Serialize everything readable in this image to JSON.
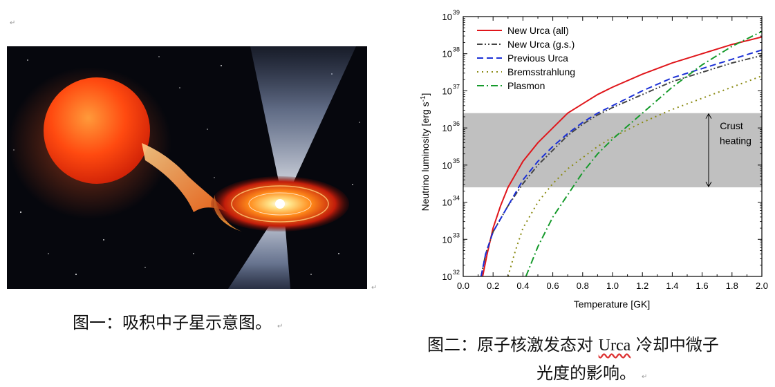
{
  "marks": {
    "paragraph": "↵"
  },
  "figure1": {
    "caption": "图一：吸积中子星示意图。",
    "colors": {
      "star": "#ff4a10",
      "jet": "#c9d8ff",
      "disk": "#ff7a20",
      "space": "#06070d"
    }
  },
  "figure2": {
    "caption_part1": "图二：原子核激发态对 ",
    "caption_urca": "Urca",
    "caption_part2": " 冷却中微子",
    "caption_line2": "光度的影响。",
    "chart_data": {
      "type": "line",
      "xlabel": "Temperature [GK]",
      "ylabel": "Neutrino luminosity [erg s",
      "ylabel_sup": "-1",
      "ylabel_end": "]",
      "xlim": [
        0.0,
        2.0
      ],
      "ylim_log10": [
        32,
        39
      ],
      "log_y": true,
      "grid": false,
      "legend_position": "top-left",
      "xticks": [
        "0.0",
        "0.2",
        "0.4",
        "0.6",
        "0.8",
        "1.0",
        "1.2",
        "1.4",
        "1.6",
        "1.8",
        "2.0"
      ],
      "yticks": [
        {
          "base": "10",
          "exp": "32"
        },
        {
          "base": "10",
          "exp": "33"
        },
        {
          "base": "10",
          "exp": "34"
        },
        {
          "base": "10",
          "exp": "35"
        },
        {
          "base": "10",
          "exp": "36"
        },
        {
          "base": "10",
          "exp": "37"
        },
        {
          "base": "10",
          "exp": "38"
        },
        {
          "base": "10",
          "exp": "39"
        }
      ],
      "band": {
        "y_from_log10": 34.4,
        "y_to_log10": 36.4,
        "color": "#c0c0c0",
        "annotation_line1": "Crust",
        "annotation_line2": "heating"
      },
      "series": [
        {
          "name": "New Urca (all)",
          "color": "#e0161b",
          "dash": "solid",
          "points": [
            [
              0.13,
              32.0
            ],
            [
              0.16,
              32.6
            ],
            [
              0.2,
              33.3
            ],
            [
              0.25,
              33.9
            ],
            [
              0.3,
              34.4
            ],
            [
              0.4,
              35.1
            ],
            [
              0.5,
              35.6
            ],
            [
              0.6,
              36.0
            ],
            [
              0.7,
              36.4
            ],
            [
              0.8,
              36.65
            ],
            [
              0.9,
              36.9
            ],
            [
              1.0,
              37.1
            ],
            [
              1.2,
              37.45
            ],
            [
              1.4,
              37.75
            ],
            [
              1.6,
              38.0
            ],
            [
              1.8,
              38.25
            ],
            [
              2.0,
              38.45
            ]
          ]
        },
        {
          "name": "New Urca (g.s.)",
          "color": "#444444",
          "dash": "dashdotdot",
          "points": [
            [
              0.12,
              32.0
            ],
            [
              0.15,
              32.6
            ],
            [
              0.2,
              33.2
            ],
            [
              0.3,
              33.9
            ],
            [
              0.4,
              34.5
            ],
            [
              0.5,
              35.0
            ],
            [
              0.6,
              35.4
            ],
            [
              0.7,
              35.8
            ],
            [
              0.8,
              36.1
            ],
            [
              0.9,
              36.35
            ],
            [
              1.0,
              36.55
            ],
            [
              1.2,
              36.9
            ],
            [
              1.4,
              37.25
            ],
            [
              1.6,
              37.5
            ],
            [
              1.8,
              37.75
            ],
            [
              2.0,
              37.95
            ]
          ]
        },
        {
          "name": "Previous Urca",
          "color": "#1a2fd6",
          "dash": "dash",
          "points": [
            [
              0.12,
              32.0
            ],
            [
              0.15,
              32.6
            ],
            [
              0.2,
              33.2
            ],
            [
              0.3,
              33.9
            ],
            [
              0.4,
              34.6
            ],
            [
              0.5,
              35.1
            ],
            [
              0.6,
              35.5
            ],
            [
              0.7,
              35.85
            ],
            [
              0.8,
              36.15
            ],
            [
              0.9,
              36.4
            ],
            [
              1.0,
              36.6
            ],
            [
              1.2,
              37.0
            ],
            [
              1.4,
              37.35
            ],
            [
              1.6,
              37.6
            ],
            [
              1.8,
              37.85
            ],
            [
              2.0,
              38.1
            ]
          ]
        },
        {
          "name": "Bremsstrahlung",
          "color": "#8a8a12",
          "dash": "dot",
          "points": [
            [
              0.3,
              32.0
            ],
            [
              0.35,
              32.7
            ],
            [
              0.4,
              33.3
            ],
            [
              0.5,
              34.0
            ],
            [
              0.6,
              34.5
            ],
            [
              0.7,
              34.9
            ],
            [
              0.8,
              35.2
            ],
            [
              0.9,
              35.5
            ],
            [
              1.0,
              35.75
            ],
            [
              1.2,
              36.15
            ],
            [
              1.4,
              36.5
            ],
            [
              1.6,
              36.8
            ],
            [
              1.8,
              37.1
            ],
            [
              2.0,
              37.4
            ]
          ]
        },
        {
          "name": "Plasmon",
          "color": "#159a2b",
          "dash": "dashdot",
          "points": [
            [
              0.42,
              32.0
            ],
            [
              0.5,
              32.8
            ],
            [
              0.6,
              33.6
            ],
            [
              0.7,
              34.2
            ],
            [
              0.8,
              34.8
            ],
            [
              0.9,
              35.3
            ],
            [
              1.0,
              35.7
            ],
            [
              1.2,
              36.4
            ],
            [
              1.4,
              37.1
            ],
            [
              1.6,
              37.7
            ],
            [
              1.8,
              38.2
            ],
            [
              2.0,
              38.6
            ]
          ]
        }
      ]
    }
  }
}
